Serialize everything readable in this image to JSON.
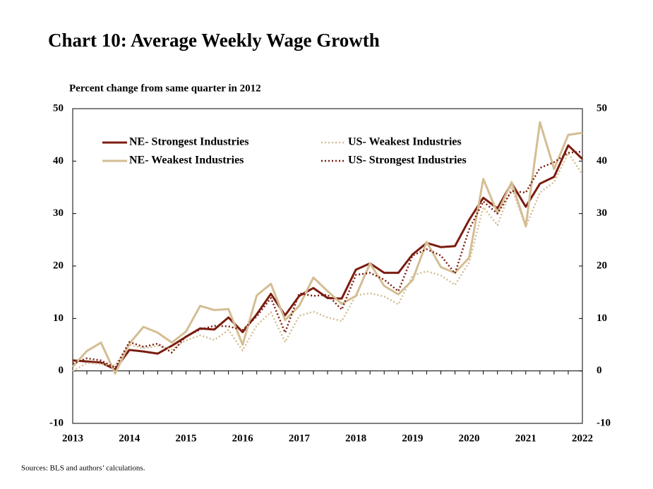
{
  "chart_data": {
    "type": "line",
    "title": "Chart 10: Average Weekly Wage Growth",
    "y_label": "Percent change from same quarter in 2012",
    "source": "Sources: BLS  and authors’ calculations.",
    "categories": [
      "2013",
      null,
      null,
      null,
      "2014",
      null,
      null,
      null,
      "2015",
      null,
      null,
      null,
      "2016",
      null,
      null,
      null,
      "2017",
      null,
      null,
      null,
      "2018",
      null,
      null,
      null,
      "2019",
      null,
      null,
      null,
      "2020",
      null,
      null,
      null,
      "2021",
      null,
      null,
      null,
      "2022"
    ],
    "ylim": [
      -10,
      50
    ],
    "yticks": [
      -10,
      0,
      10,
      20,
      30,
      40,
      50
    ],
    "y2lim": [
      -10,
      50
    ],
    "y2ticks": [
      -10,
      0,
      10,
      20,
      30,
      40,
      50
    ],
    "series": [
      {
        "name": "NE- Strongest Industries",
        "color": "#7b1c10",
        "style": "solid",
        "values": [
          2.0,
          1.8,
          1.6,
          0.3,
          4.0,
          3.7,
          3.3,
          4.8,
          6.5,
          8.1,
          7.9,
          10.2,
          7.4,
          10.8,
          14.7,
          10.6,
          14.3,
          15.8,
          13.9,
          13.8,
          19.3,
          20.5,
          18.7,
          18.7,
          22.2,
          24.4,
          23.6,
          23.8,
          28.8,
          33.0,
          31.0,
          35.8,
          31.3,
          35.7,
          37.0,
          43.0,
          40.4
        ]
      },
      {
        "name": "NE- Weakest Industries",
        "color": "#d4bd93",
        "style": "solid",
        "values": [
          0.8,
          3.8,
          5.4,
          -0.5,
          5.2,
          8.4,
          7.3,
          5.4,
          7.5,
          12.4,
          11.6,
          11.8,
          5.0,
          14.4,
          16.6,
          9.7,
          12.4,
          17.8,
          15.2,
          12.8,
          14.3,
          20.5,
          16.2,
          14.6,
          17.3,
          24.6,
          19.8,
          18.7,
          21.6,
          36.6,
          30.1,
          36.0,
          27.6,
          47.4,
          38.5,
          45.0,
          45.4
        ]
      },
      {
        "name": "US- Weakest Industries",
        "color": "#d4bd93",
        "style": "dotted",
        "values": [
          0.0,
          1.5,
          1.3,
          1.0,
          5.0,
          4.3,
          4.8,
          4.1,
          5.8,
          6.8,
          5.9,
          7.8,
          3.9,
          8.7,
          11.2,
          5.5,
          10.5,
          11.3,
          10.2,
          9.5,
          14.4,
          14.8,
          14.2,
          12.7,
          18.2,
          19.0,
          18.2,
          16.4,
          20.7,
          31.2,
          27.8,
          35.0,
          27.5,
          34.0,
          36.0,
          41.5,
          37.5
        ]
      },
      {
        "name": "US- Strongest Industries",
        "color": "#7b1c10",
        "style": "dotted",
        "values": [
          1.4,
          2.4,
          2.0,
          0.6,
          5.5,
          4.6,
          5.2,
          3.5,
          6.6,
          7.9,
          8.6,
          8.5,
          7.8,
          10.4,
          13.9,
          7.3,
          14.8,
          14.3,
          14.5,
          11.7,
          18.3,
          18.7,
          17.4,
          15.2,
          22.0,
          23.2,
          22.0,
          18.6,
          27.0,
          32.3,
          30.0,
          34.3,
          34.0,
          38.7,
          39.8,
          41.6,
          41.8
        ]
      }
    ]
  }
}
